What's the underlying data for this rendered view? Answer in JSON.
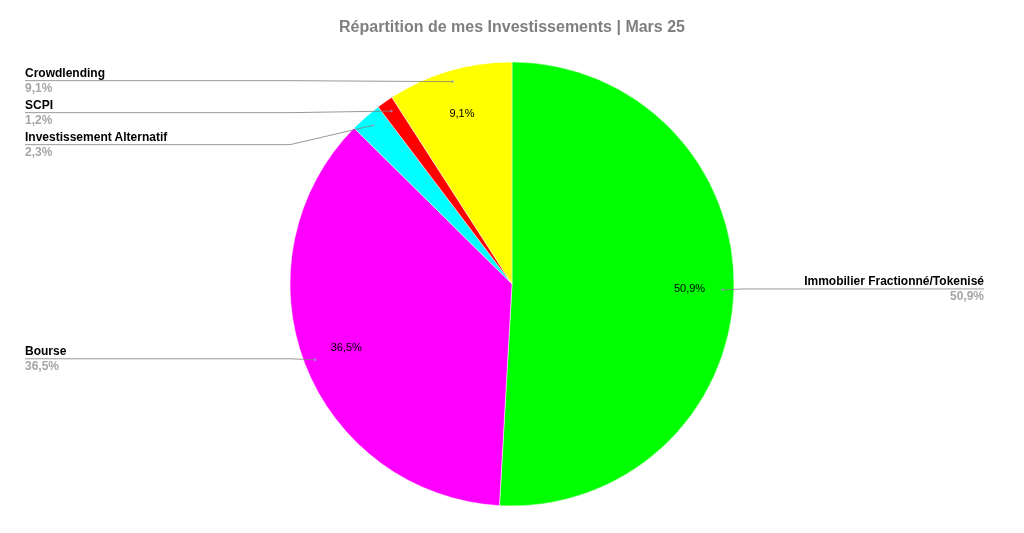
{
  "chart_data": {
    "type": "pie",
    "title": "Répartition de mes Investissements | Mars 25",
    "categories": [
      "Immobilier Fractionné/Tokenisé",
      "Bourse",
      "Investissement Alternatif",
      "SCPI",
      "Crowdlending"
    ],
    "values": [
      50.9,
      36.5,
      2.3,
      1.2,
      9.1
    ],
    "colors": [
      "#00ff00",
      "#ff00ff",
      "#00ffff",
      "#ff0000",
      "#ffff00"
    ],
    "value_labels": [
      "50,9%",
      "36,5%",
      "2,3%",
      "1,2%",
      "9,1%"
    ]
  }
}
